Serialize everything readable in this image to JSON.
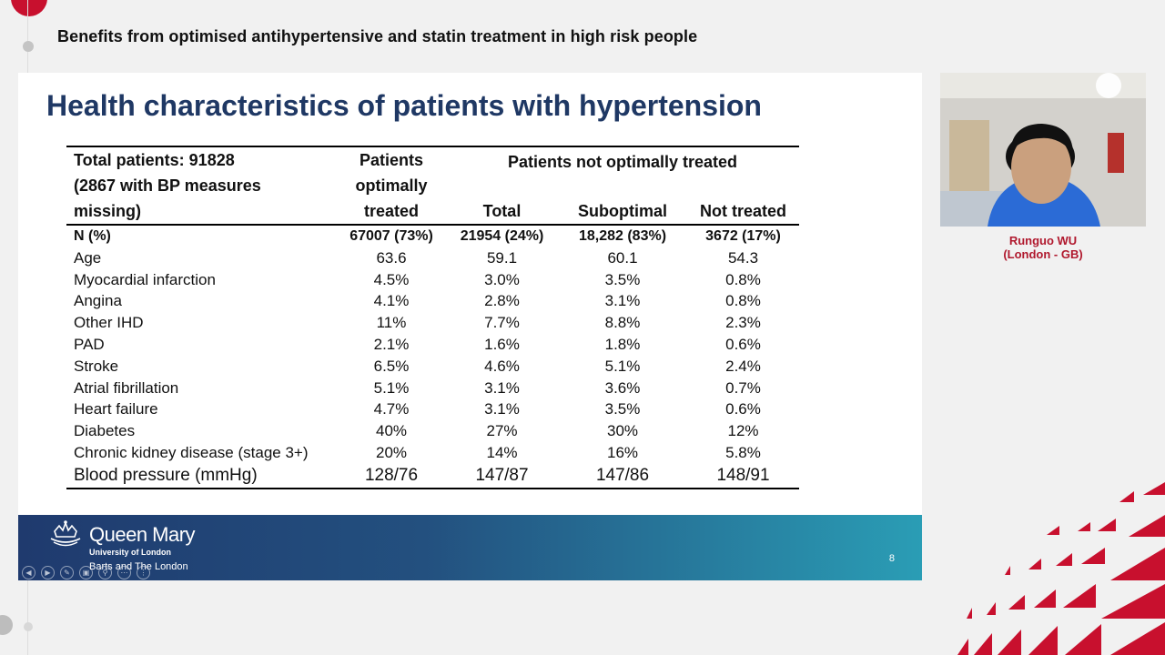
{
  "session": {
    "title": "Benefits from optimised antihypertensive and statin treatment in high risk people"
  },
  "slide": {
    "title": "Health characteristics of patients with hypertension",
    "table": {
      "header": {
        "first_line1": "Total patients: 91828",
        "first_line2": "(2867 with BP measures",
        "first_line3": "missing)",
        "optimal_line1": "Patients",
        "optimal_line2": "optimally",
        "optimal_line3": "treated",
        "group": "Patients not optimally treated",
        "total": "Total",
        "suboptimal": "Suboptimal",
        "not_treated": "Not treated"
      },
      "rows": [
        {
          "label": "N (%)",
          "optimal": "67007 (73%)",
          "total": "21954 (24%)",
          "suboptimal": "18,282 (83%)",
          "not_treated": "3672 (17%)"
        },
        {
          "label": "Age",
          "optimal": "63.6",
          "total": "59.1",
          "suboptimal": "60.1",
          "not_treated": "54.3"
        },
        {
          "label": "Myocardial infarction",
          "optimal": "4.5%",
          "total": "3.0%",
          "suboptimal": "3.5%",
          "not_treated": "0.8%"
        },
        {
          "label": "Angina",
          "optimal": "4.1%",
          "total": "2.8%",
          "suboptimal": "3.1%",
          "not_treated": "0.8%"
        },
        {
          "label": "Other IHD",
          "optimal": "11%",
          "total": "7.7%",
          "suboptimal": "8.8%",
          "not_treated": "2.3%"
        },
        {
          "label": "PAD",
          "optimal": "2.1%",
          "total": "1.6%",
          "suboptimal": "1.8%",
          "not_treated": "0.6%"
        },
        {
          "label": "Stroke",
          "optimal": "6.5%",
          "total": "4.6%",
          "suboptimal": "5.1%",
          "not_treated": "2.4%"
        },
        {
          "label": "Atrial fibrillation",
          "optimal": "5.1%",
          "total": "3.1%",
          "suboptimal": "3.6%",
          "not_treated": "0.7%"
        },
        {
          "label": "Heart failure",
          "optimal": "4.7%",
          "total": "3.1%",
          "suboptimal": "3.5%",
          "not_treated": "0.6%"
        },
        {
          "label": "Diabetes",
          "optimal": "40%",
          "total": "27%",
          "suboptimal": "30%",
          "not_treated": "12%"
        },
        {
          "label": "Chronic kidney disease (stage 3+)",
          "optimal": "20%",
          "total": "14%",
          "suboptimal": "16%",
          "not_treated": "5.8%"
        },
        {
          "label": "Blood pressure (mmHg)",
          "optimal": "128/76",
          "total": "147/87",
          "suboptimal": "147/86",
          "not_treated": "148/91"
        }
      ]
    },
    "footer": {
      "brand": "Queen Mary",
      "university": "University of London",
      "school": "Barts and The London",
      "page_number": "8"
    },
    "controls": [
      "prev-icon",
      "next-icon",
      "pen-icon",
      "slides-icon",
      "zoom-icon",
      "more-icon",
      "options-icon"
    ]
  },
  "speaker": {
    "name": "Runguo WU",
    "location": "(London - GB)"
  },
  "colors": {
    "accent_red": "#c8102e",
    "title_blue": "#1f3864",
    "footer_start": "#1f3a6e",
    "footer_end": "#2a9db5",
    "speaker_red": "#b0182d"
  }
}
